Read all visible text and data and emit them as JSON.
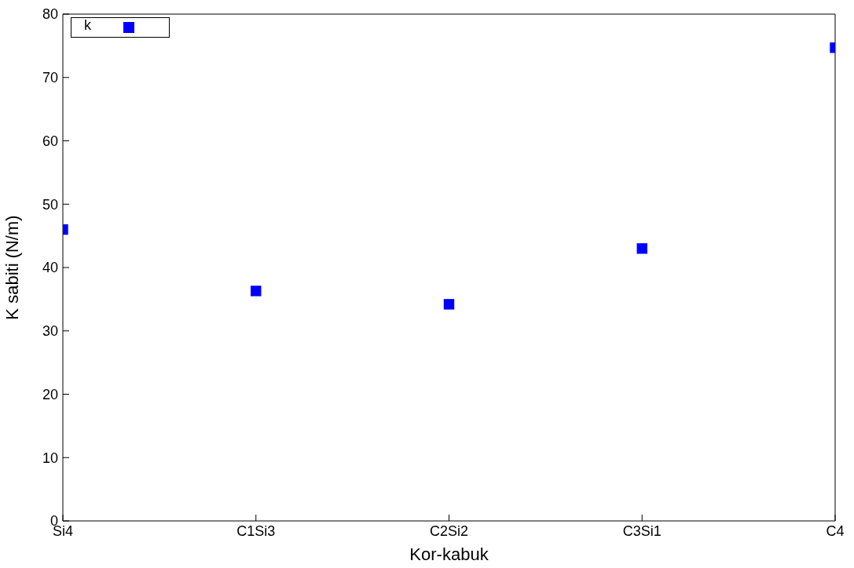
{
  "chart_data": {
    "type": "scatter",
    "xlabel": "Kor-kabuk",
    "ylabel": "K sabiti  (N/m)",
    "categories": [
      "Si4",
      "C1Si3",
      "C2Si2",
      "C3Si1",
      "C4"
    ],
    "series": [
      {
        "name": "k",
        "color": "#0000ff",
        "values": [
          46,
          36.3,
          34.2,
          43,
          74.7
        ]
      }
    ],
    "ylim": [
      0,
      80
    ],
    "yticks": [
      0,
      10,
      20,
      30,
      40,
      50,
      60,
      70,
      80
    ],
    "marker": "square",
    "legend": "top left"
  }
}
